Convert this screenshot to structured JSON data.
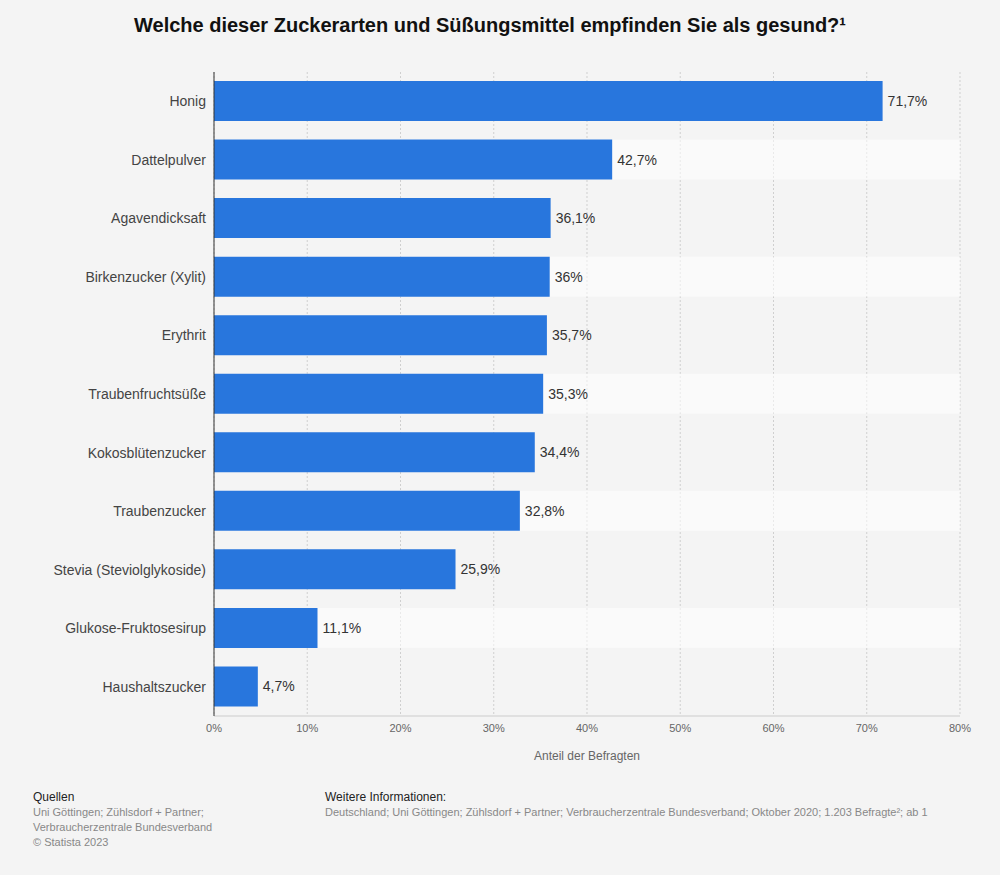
{
  "chart_data": {
    "type": "bar",
    "title": "Welche dieser Zuckerarten und Süßungsmittel empfinden Sie als gesund?¹",
    "orientation": "horizontal",
    "categories": [
      "Honig",
      "Dattelpulver",
      "Agavendicksaft",
      "Birkenzucker (Xylit)",
      "Erythrit",
      "Traubenfruchtsüße",
      "Kokosblütenzucker",
      "Traubenzucker",
      "Stevia (Steviolglykoside)",
      "Glukose-Fruktosesirup",
      "Haushaltszucker"
    ],
    "values": [
      71.7,
      42.7,
      36.1,
      36,
      35.7,
      35.3,
      34.4,
      32.8,
      25.9,
      11.1,
      4.7
    ],
    "value_labels": [
      "71,7%",
      "42,7%",
      "36,1%",
      "36%",
      "35,7%",
      "35,3%",
      "34,4%",
      "32,8%",
      "25,9%",
      "11,1%",
      "4,7%"
    ],
    "data_labels": true,
    "color": "#2876dd",
    "xlabel": "Anteil der Befragten",
    "xlim": [
      0,
      80
    ],
    "xticks": [
      {
        "value": 0,
        "label": "0%"
      },
      {
        "value": 10,
        "label": "10%"
      },
      {
        "value": 20,
        "label": "20%"
      },
      {
        "value": 30,
        "label": "30%"
      },
      {
        "value": 40,
        "label": "40%"
      },
      {
        "value": 50,
        "label": "50%"
      },
      {
        "value": 60,
        "label": "60%"
      },
      {
        "value": 70,
        "label": "70%"
      },
      {
        "value": 80,
        "label": "80%"
      }
    ],
    "grid": true,
    "source_title": "Quellen",
    "source": [
      "Uni Göttingen; Zühlsdorf + Partner;",
      "Verbraucherzentrale Bundesverband",
      "© Statista 2023"
    ],
    "info_title": "Weitere Informationen:",
    "info": "Deutschland; Uni Göttingen; Zühlsdorf + Partner; Verbraucherzentrale Bundesverband; Oktober 2020; 1.203 Befragte²; ab 1"
  }
}
